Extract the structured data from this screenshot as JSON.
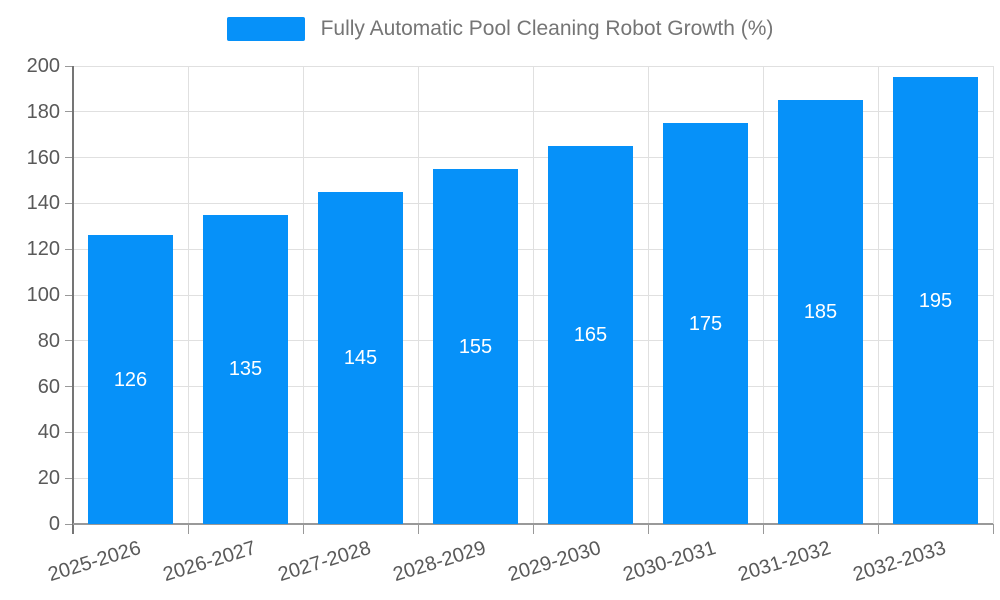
{
  "legend": {
    "label": "Fully Automatic Pool Cleaning Robot Growth (%)"
  },
  "chart_data": {
    "type": "bar",
    "title": "Fully Automatic Pool Cleaning Robot Growth (%)",
    "categories": [
      "2025-2026",
      "2026-2027",
      "2027-2028",
      "2028-2029",
      "2029-2030",
      "2030-2031",
      "2031-2032",
      "2032-2033"
    ],
    "values": [
      126,
      135,
      145,
      155,
      165,
      175,
      185,
      195
    ],
    "xlabel": "",
    "ylabel": "",
    "ylim": [
      0,
      200
    ],
    "ytick_step": 20,
    "ytick_labels": [
      "0",
      "20",
      "40",
      "60",
      "80",
      "100",
      "120",
      "140",
      "160",
      "180",
      "200"
    ],
    "grid": true,
    "legend_position": "top-center",
    "bar_label_position": "inside-center",
    "xtick_rotation_deg": -17,
    "colors": {
      "bar": "#0691f9",
      "grid": "#e0e0e0",
      "axis": "#999999",
      "y_axis_line": "#757575",
      "tick_text": "#595959",
      "legend_text": "#757575",
      "value_label": "#ffffff",
      "background": "#ffffff"
    }
  }
}
